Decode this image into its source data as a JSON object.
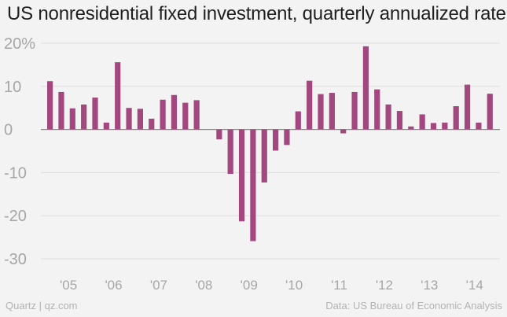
{
  "footer": {
    "source_left": "Quartz | qz.com",
    "source_right": "Data: US Bureau of Economic Analysis"
  },
  "colors": {
    "bar": "#a3487f",
    "grid": "#dedede",
    "zero_line": "#8c8c8c",
    "tick_text": "#a6a6a6",
    "background": "#f3f3f3"
  },
  "chart_data": {
    "type": "bar",
    "title": "US nonresidential fixed investment, quarterly annualized rate",
    "xlabel": "",
    "ylabel": "",
    "ylim": [
      -30,
      20
    ],
    "y_ticks": [
      20,
      10,
      0,
      -10,
      -20,
      -30
    ],
    "y_tick_labels": [
      "20%",
      "10",
      "0",
      "-10",
      "-20",
      "-30"
    ],
    "x_tick_labels": [
      "'05",
      "'06",
      "'07",
      "'08",
      "'09",
      "'10",
      "'11",
      "'12",
      "'13",
      "'14"
    ],
    "grid": true,
    "categories": [
      "2005Q1",
      "2005Q2",
      "2005Q3",
      "2005Q4",
      "2006Q1",
      "2006Q2",
      "2006Q3",
      "2006Q4",
      "2007Q1",
      "2007Q2",
      "2007Q3",
      "2007Q4",
      "2008Q1",
      "2008Q2",
      "2008Q3",
      "2008Q4",
      "2009Q1",
      "2009Q2",
      "2009Q3",
      "2009Q4",
      "2010Q1",
      "2010Q2",
      "2010Q3",
      "2010Q4",
      "2011Q1",
      "2011Q2",
      "2011Q3",
      "2011Q4",
      "2012Q1",
      "2012Q2",
      "2012Q3",
      "2012Q4",
      "2013Q1",
      "2013Q2",
      "2013Q3",
      "2013Q4",
      "2014Q1",
      "2014Q2",
      "2014Q3",
      "2014Q4"
    ],
    "values": [
      11.2,
      8.7,
      4.9,
      5.8,
      7.4,
      1.6,
      15.6,
      5.0,
      4.8,
      2.5,
      6.9,
      8.0,
      6.2,
      6.8,
      null,
      -2.3,
      -10.3,
      -21.3,
      -25.9,
      -12.3,
      -4.9,
      -3.6,
      4.2,
      11.3,
      8.2,
      8.5,
      -0.9,
      8.7,
      19.3,
      9.3,
      5.8,
      4.3,
      0.7,
      3.5,
      1.5,
      1.6,
      5.4,
      10.4,
      1.6,
      8.3
    ]
  }
}
